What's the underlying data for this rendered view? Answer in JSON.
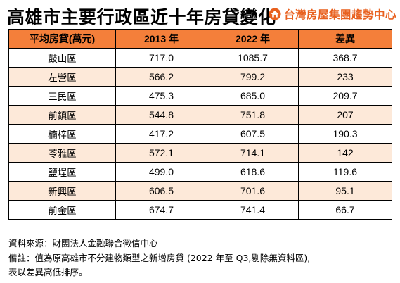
{
  "title": "高雄市主要行政區近十年房貸變化",
  "brand": {
    "name": "台灣房屋集團趨勢中心",
    "color": "#e8601e",
    "logo_icon": "house-logo-icon"
  },
  "table": {
    "headers": [
      "平均房貸(萬元)",
      "2013 年",
      "2022 年",
      "差異"
    ],
    "header_color": "#f47f3a",
    "alt_row_color": "#fde9d9",
    "rows": [
      {
        "district": "鼓山區",
        "y2013": "717.0",
        "y2022": "1085.7",
        "diff": "368.7"
      },
      {
        "district": "左營區",
        "y2013": "566.2",
        "y2022": "799.2",
        "diff": "233"
      },
      {
        "district": "三民區",
        "y2013": "475.3",
        "y2022": "685.0",
        "diff": "209.7"
      },
      {
        "district": "前鎮區",
        "y2013": "544.8",
        "y2022": "751.8",
        "diff": "207"
      },
      {
        "district": "楠梓區",
        "y2013": "417.2",
        "y2022": "607.5",
        "diff": "190.3"
      },
      {
        "district": "苓雅區",
        "y2013": "572.1",
        "y2022": "714.1",
        "diff": "142"
      },
      {
        "district": "鹽埕區",
        "y2013": "499.0",
        "y2022": "618.6",
        "diff": "119.6"
      },
      {
        "district": "新興區",
        "y2013": "606.5",
        "y2022": "701.6",
        "diff": "95.1"
      },
      {
        "district": "前金區",
        "y2013": "674.7",
        "y2022": "741.4",
        "diff": "66.7"
      }
    ]
  },
  "notes": {
    "source": "資料來源：財團法人金融聯合徵信中心",
    "remark1": "備註：值為原高雄市不分建物類型之新增房貸 (2022 年至 Q3,剔除無資料區),",
    "remark2": "表以差異高低排序。"
  }
}
